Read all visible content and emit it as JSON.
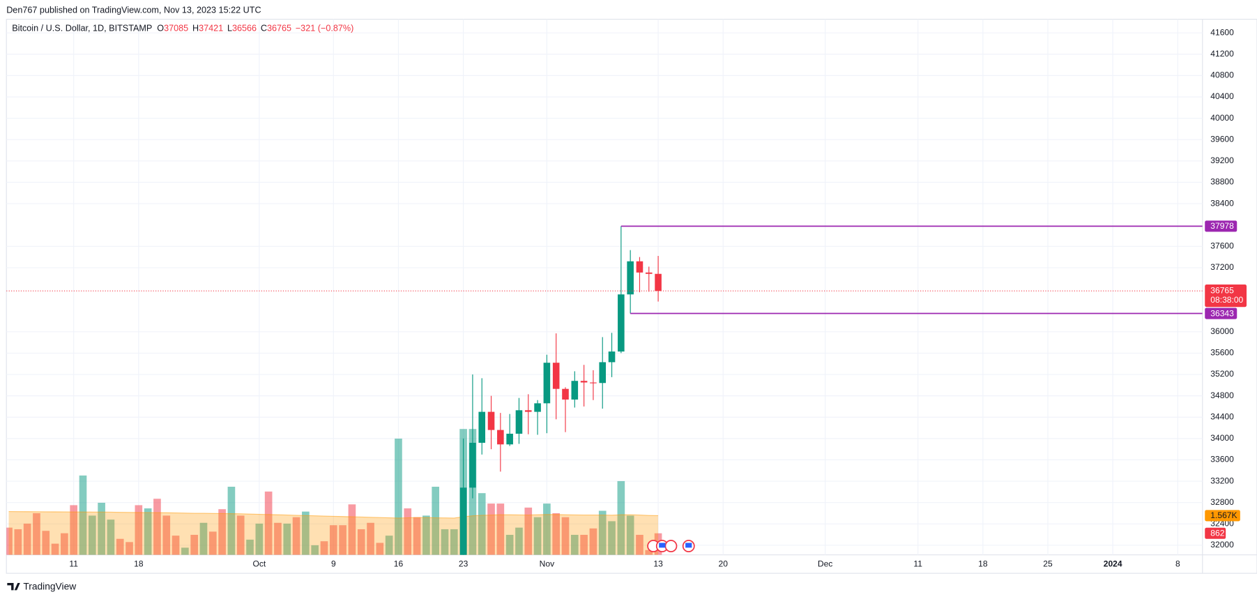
{
  "chart_data": {
    "type": "candlestick",
    "header": "Den767 published on TradingView.com, Nov 13, 2023 15:22 UTC",
    "title": "Bitcoin / U.S. Dollar, 1D, BITSTAMP",
    "ohlc_labels": [
      "O",
      "H",
      "L",
      "C"
    ],
    "change_label": "−321 (−0.87%)",
    "countdown": "08:38:00",
    "brand": "TradingView",
    "up_color": "#089981",
    "down_color": "#f23645",
    "level_color": "#9c27b0",
    "grid": true,
    "xlim": [
      "2023-09-03T18:00:00Z",
      "2024-01-10T16:00:00Z"
    ],
    "xticks": [
      {
        "value": "2023-09-11",
        "label": "11"
      },
      {
        "value": "2023-09-18",
        "label": "18"
      },
      {
        "value": "2023-10-01",
        "label": "Oct"
      },
      {
        "value": "2023-10-09",
        "label": "9"
      },
      {
        "value": "2023-10-16",
        "label": "16"
      },
      {
        "value": "2023-10-23",
        "label": "23"
      },
      {
        "value": "2023-11-01",
        "label": "Nov"
      },
      {
        "value": "2023-11-13",
        "label": "13"
      },
      {
        "value": "2023-11-20",
        "label": "20"
      },
      {
        "value": "2023-12-01",
        "label": "Dec"
      },
      {
        "value": "2023-12-11",
        "label": "11"
      },
      {
        "value": "2023-12-18",
        "label": "18"
      },
      {
        "value": "2023-12-25",
        "label": "25"
      },
      {
        "value": "2024-01-01",
        "label": "2024"
      },
      {
        "value": "2024-01-08",
        "label": "8"
      }
    ],
    "ylim": [
      31820,
      41855
    ],
    "yticks": [
      32000,
      32400,
      32800,
      33200,
      33600,
      34000,
      34400,
      34800,
      35200,
      35600,
      36000,
      37200,
      37600,
      38400,
      38800,
      39200,
      39600,
      40000,
      40400,
      40800,
      41200,
      41600
    ],
    "y2lim": [
      0,
      21376
    ],
    "candles": {
      "x": [
        "2023-10-23",
        "2023-10-24",
        "2023-10-25",
        "2023-10-26",
        "2023-10-27",
        "2023-10-28",
        "2023-10-29",
        "2023-10-30",
        "2023-10-31",
        "2023-11-01",
        "2023-11-02",
        "2023-11-03",
        "2023-11-04",
        "2023-11-05",
        "2023-11-06",
        "2023-11-07",
        "2023-11-08",
        "2023-11-09",
        "2023-11-10",
        "2023-11-11",
        "2023-11-12",
        "2023-11-13"
      ],
      "open": [
        30980,
        33080,
        33920,
        34500,
        34160,
        33890,
        34090,
        34530,
        34500,
        34660,
        35420,
        34930,
        34730,
        35080,
        35050,
        35040,
        35430,
        35630,
        36700,
        37320,
        37110,
        37085
      ],
      "high": [
        34000,
        35200,
        35130,
        34800,
        34480,
        34460,
        34760,
        34830,
        34720,
        35570,
        35970,
        34960,
        35260,
        35380,
        35280,
        35900,
        35980,
        37978,
        37530,
        37400,
        37220,
        37421
      ],
      "low": [
        30900,
        32880,
        33700,
        33800,
        33380,
        33860,
        33900,
        34080,
        34070,
        34100,
        34360,
        34120,
        34580,
        34600,
        34720,
        34560,
        35150,
        35600,
        36343,
        36740,
        36750,
        36566
      ],
      "close": [
        33080,
        33920,
        34500,
        34160,
        33890,
        34090,
        34530,
        34500,
        34660,
        35420,
        34930,
        34730,
        35080,
        35050,
        35040,
        35430,
        35630,
        36700,
        37320,
        37110,
        37085,
        36765
      ]
    },
    "levels": [
      {
        "value": 37978,
        "from": "2023-11-09"
      },
      {
        "value": 36343,
        "from": "2023-11-10"
      }
    ],
    "volume": {
      "axis": "y2",
      "x": [
        "2023-09-04",
        "2023-09-05",
        "2023-09-06",
        "2023-09-07",
        "2023-09-08",
        "2023-09-09",
        "2023-09-10",
        "2023-09-11",
        "2023-09-12",
        "2023-09-13",
        "2023-09-14",
        "2023-09-15",
        "2023-09-16",
        "2023-09-17",
        "2023-09-18",
        "2023-09-19",
        "2023-09-20",
        "2023-09-21",
        "2023-09-22",
        "2023-09-23",
        "2023-09-24",
        "2023-09-25",
        "2023-09-26",
        "2023-09-27",
        "2023-09-28",
        "2023-09-29",
        "2023-09-30",
        "2023-10-01",
        "2023-10-02",
        "2023-10-03",
        "2023-10-04",
        "2023-10-05",
        "2023-10-06",
        "2023-10-07",
        "2023-10-08",
        "2023-10-09",
        "2023-10-10",
        "2023-10-11",
        "2023-10-12",
        "2023-10-13",
        "2023-10-14",
        "2023-10-15",
        "2023-10-16",
        "2023-10-17",
        "2023-10-18",
        "2023-10-19",
        "2023-10-20",
        "2023-10-21",
        "2023-10-22",
        "2023-10-23",
        "2023-10-24",
        "2023-10-25",
        "2023-10-26",
        "2023-10-27",
        "2023-10-28",
        "2023-10-29",
        "2023-10-30",
        "2023-10-31",
        "2023-11-01",
        "2023-11-02",
        "2023-11-03",
        "2023-11-04",
        "2023-11-05",
        "2023-11-06",
        "2023-11-07",
        "2023-11-08",
        "2023-11-09",
        "2023-11-10",
        "2023-11-11",
        "2023-11-12",
        "2023-11-13"
      ],
      "values": [
        1088,
        1024,
        1248,
        1664,
        960,
        448,
        864,
        1984,
        3168,
        1568,
        2080,
        1408,
        640,
        512,
        1984,
        1856,
        2240,
        1568,
        768,
        288,
        800,
        1280,
        928,
        1824,
        2720,
        1568,
        608,
        1248,
        2528,
        1280,
        1248,
        1504,
        1728,
        384,
        544,
        1184,
        1184,
        2016,
        1024,
        1280,
        480,
        768,
        4640,
        1856,
        1504,
        1568,
        2720,
        1024,
        1024,
        5024,
        5024,
        2464,
        2048,
        2048,
        800,
        1088,
        1888,
        1504,
        2048,
        1664,
        1504,
        800,
        800,
        1056,
        1760,
        1344,
        2944,
        1568,
        800,
        192,
        862
      ],
      "colors": [
        "#f2364580",
        "#f2364580",
        "#f2364580",
        "#f2364580",
        "#f2364580",
        "#f2364580",
        "#f2364580",
        "#f2364580",
        "#08998180",
        "#08998180",
        "#08998180",
        "#08998180",
        "#f2364580",
        "#f2364580",
        "#f2364580",
        "#08998180",
        "#f2364580",
        "#f2364580",
        "#f2364580",
        "#08998180",
        "#f2364580",
        "#08998180",
        "#f2364580",
        "#f2364580",
        "#08998180",
        "#f2364580",
        "#08998180",
        "#08998180",
        "#f2364580",
        "#f2364580",
        "#08998180",
        "#f2364580",
        "#08998180",
        "#08998180",
        "#f2364580",
        "#f2364580",
        "#f2364580",
        "#f2364580",
        "#f2364580",
        "#f2364580",
        "#f2364580",
        "#08998180",
        "#08998180",
        "#f2364580",
        "#f2364580",
        "#08998180",
        "#08998180",
        "#08998180",
        "#08998180",
        "#08998180",
        "#08998180",
        "#08998180",
        "#f2364580",
        "#f2364580",
        "#08998180",
        "#08998180",
        "#f2364580",
        "#08998180",
        "#08998180",
        "#f2364580",
        "#f2364580",
        "#08998180",
        "#f2364580",
        "#f2364580",
        "#08998180",
        "#08998180",
        "#08998180",
        "#08998180",
        "#f2364580",
        "#f2364580",
        "#f2364580"
      ]
    },
    "volume_ma": {
      "axis": "y2",
      "color": "#ff9800",
      "values": [
        1730,
        1728,
        1725,
        1722,
        1720,
        1718,
        1715,
        1712,
        1712,
        1710,
        1708,
        1705,
        1700,
        1695,
        1690,
        1688,
        1685,
        1680,
        1675,
        1668,
        1660,
        1660,
        1655,
        1650,
        1645,
        1640,
        1630,
        1620,
        1610,
        1600,
        1590,
        1580,
        1570,
        1560,
        1550,
        1540,
        1530,
        1520,
        1510,
        1500,
        1490,
        1480,
        1470,
        1480,
        1490,
        1490,
        1480,
        1475,
        1470,
        1520,
        1560,
        1580,
        1590,
        1600,
        1600,
        1595,
        1590,
        1600,
        1610,
        1610,
        1600,
        1595,
        1590,
        1590,
        1590,
        1585,
        1600,
        1600,
        1590,
        1575,
        1567
      ],
      "last_label": "1.567K"
    }
  }
}
